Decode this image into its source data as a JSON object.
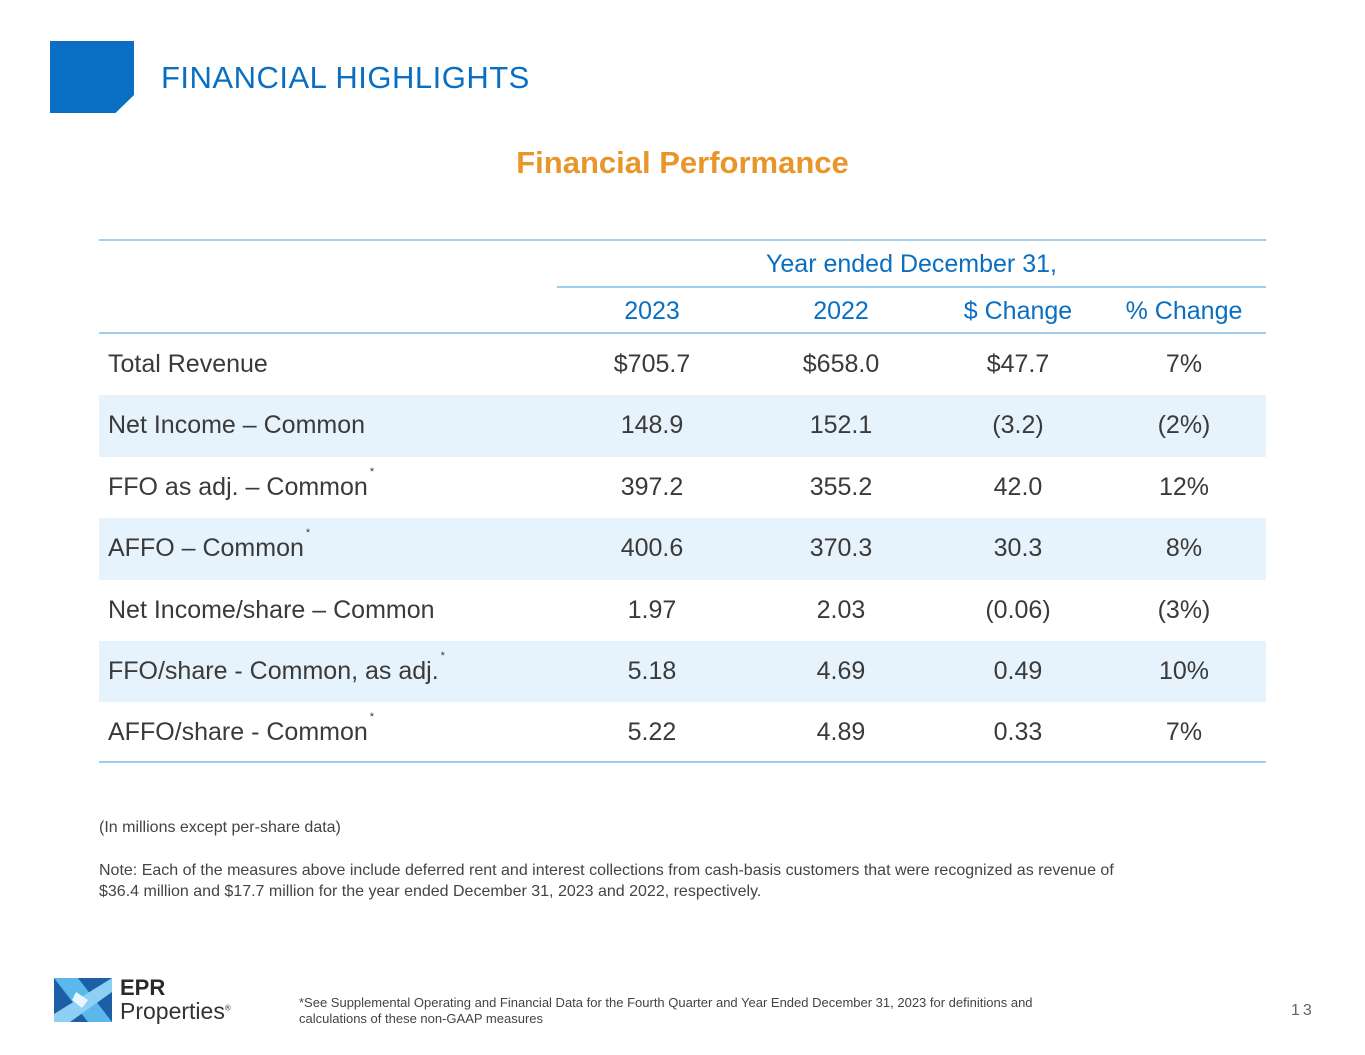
{
  "header": {
    "title": "FINANCIAL HIGHLIGHTS",
    "subtitle": "Financial Performance"
  },
  "table": {
    "group_header": "Year ended December 31,",
    "columns": [
      "2023",
      "2022",
      "$ Change",
      "% Change"
    ],
    "rows": [
      {
        "label": "Total Revenue",
        "star": "",
        "values": [
          "$705.7",
          "$658.0",
          "$47.7",
          "7%"
        ]
      },
      {
        "label": "Net Income – Common",
        "star": "",
        "values": [
          "148.9",
          "152.1",
          "(3.2)",
          "(2%)"
        ]
      },
      {
        "label": "FFO as adj. – Common",
        "star": "*",
        "values": [
          "397.2",
          "355.2",
          "42.0",
          "12%"
        ]
      },
      {
        "label": "AFFO – Common",
        "star": "*",
        "values": [
          "400.6",
          "370.3",
          "30.3",
          "8%"
        ]
      },
      {
        "label": "Net Income/share – Common",
        "star": "",
        "values": [
          "1.97",
          "2.03",
          "(0.06)",
          "(3%)"
        ]
      },
      {
        "label": "FFO/share - Common, as adj.",
        "star": "*",
        "values": [
          "5.18",
          "4.69",
          "0.49",
          "10%"
        ]
      },
      {
        "label": "AFFO/share - Common",
        "star": "*",
        "values": [
          "5.22",
          "4.89",
          "0.33",
          "7%"
        ]
      }
    ]
  },
  "units": "(In millions except per-share data)",
  "note": "Note:  Each of the measures above include deferred rent and interest collections from cash-basis customers that were recognized as revenue of $36.4 million and $17.7 million for the year ended December 31, 2023 and 2022, respectively.",
  "footer": {
    "logo_line1": "EPR",
    "logo_line2": "Properties",
    "logo_mark": "®",
    "footnote": "*See Supplemental Operating and Financial Data for the Fourth Quarter and Year Ended December 31, 2023 for definitions and calculations of these non-GAAP measures",
    "page": "13"
  },
  "colors": {
    "blue": "#0a6fc2",
    "orange": "#e8962a",
    "shade": "#e6f3fc"
  }
}
